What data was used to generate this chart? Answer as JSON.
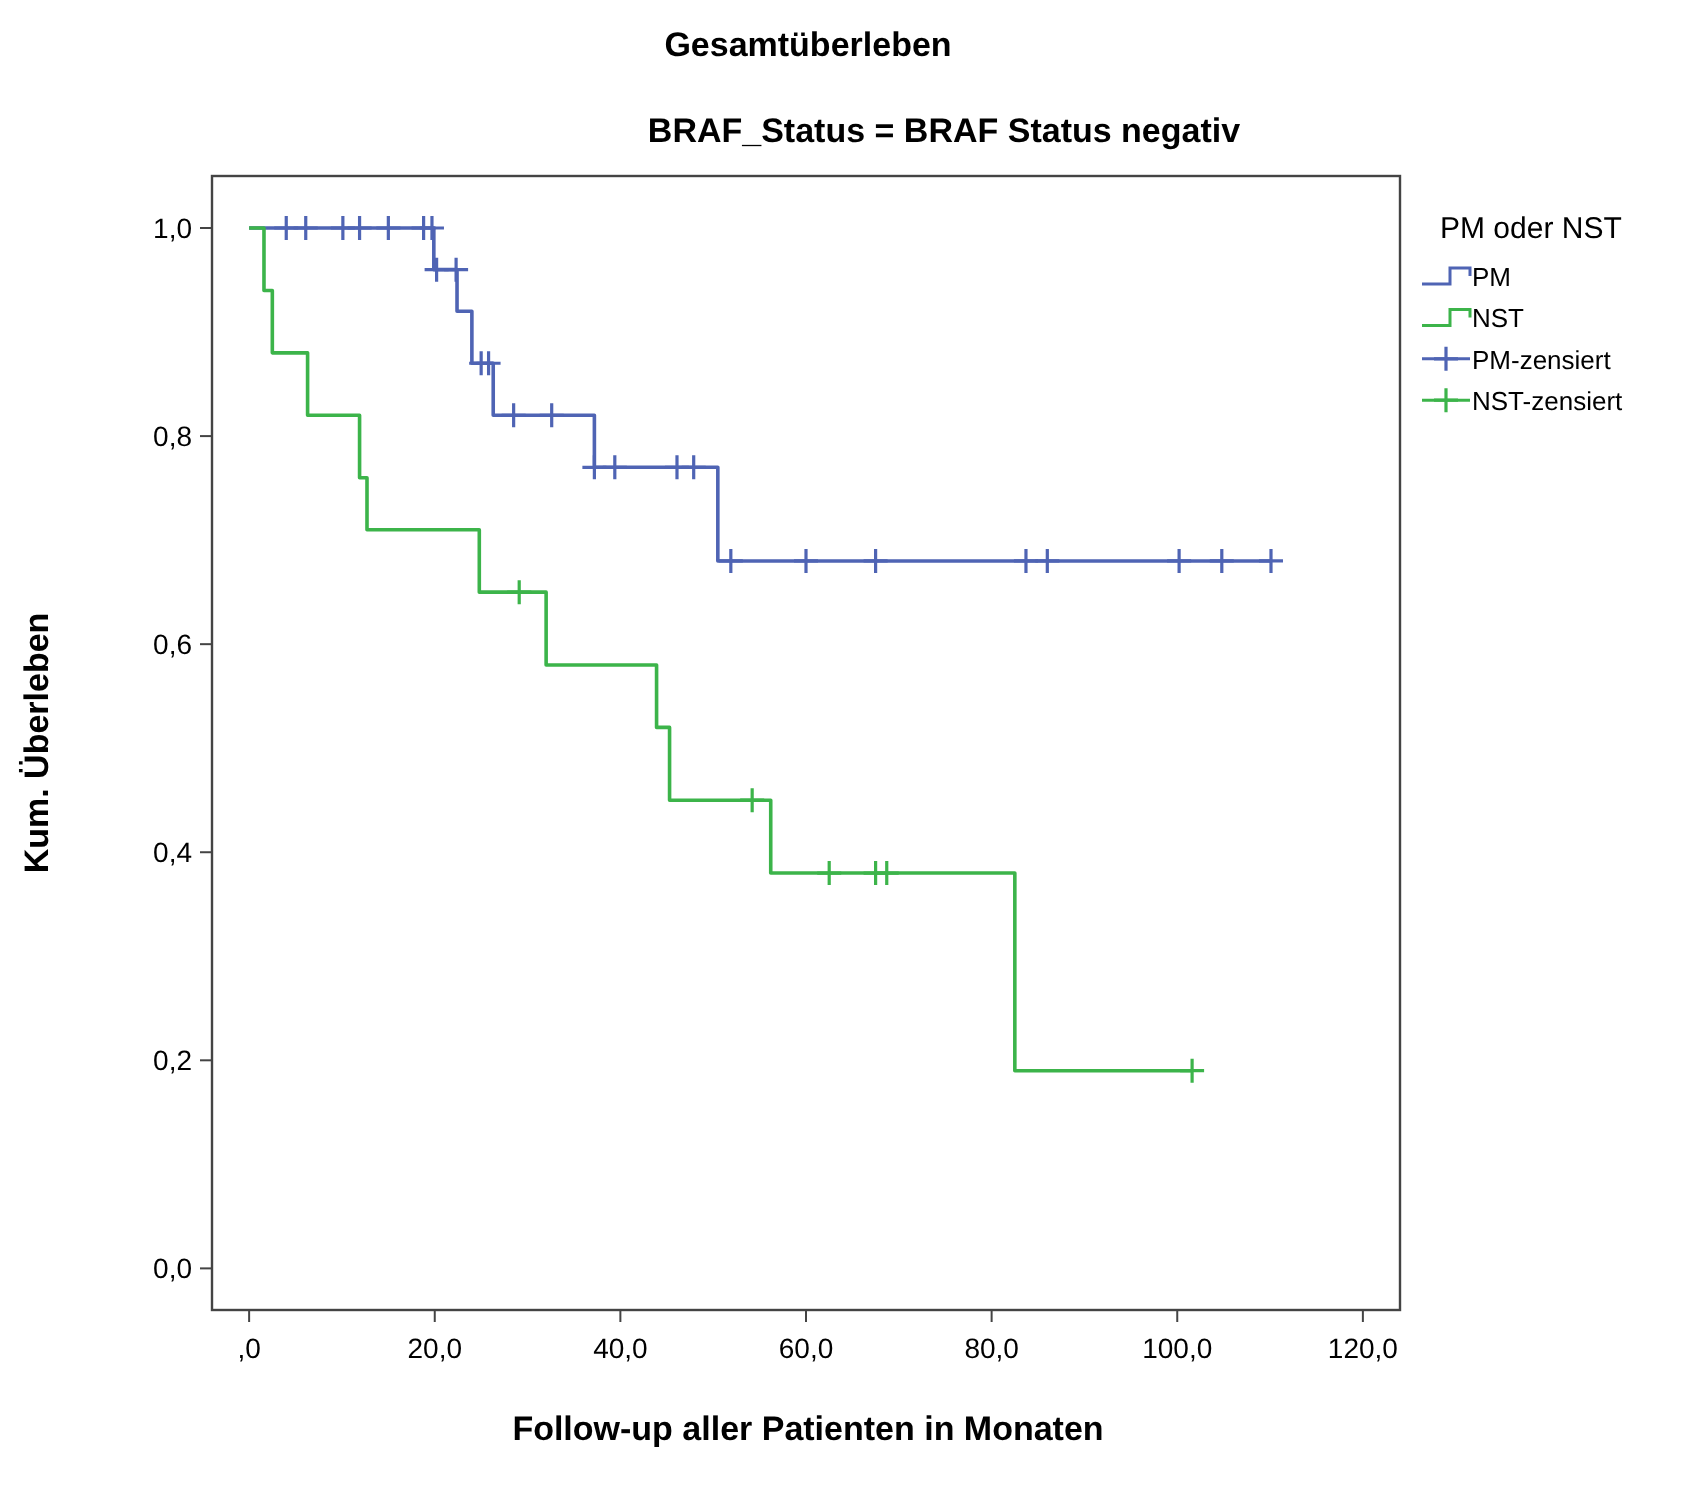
{
  "chart_data": {
    "type": "step",
    "title": "Gesamtüberleben",
    "subtitle": "BRAF_Status = BRAF Status negativ",
    "xlabel": "Follow-up aller Patienten in Monaten",
    "ylabel": "Kum. Überleben",
    "legend_title": "PM oder NST",
    "legend": "right",
    "grid": false,
    "xlim": [
      -4,
      124
    ],
    "xticks": [
      {
        "value": 0,
        "label": ",0"
      },
      {
        "value": 20,
        "label": "20,0"
      },
      {
        "value": 40,
        "label": "40,0"
      },
      {
        "value": 60,
        "label": "60,0"
      },
      {
        "value": 80,
        "label": "80,0"
      },
      {
        "value": 100,
        "label": "100,0"
      },
      {
        "value": 120,
        "label": "120,0"
      }
    ],
    "ylim": [
      -0.04,
      1.05
    ],
    "yticks": [
      {
        "value": 0,
        "label": "0,0"
      },
      {
        "value": 0.2,
        "label": "0,2"
      },
      {
        "value": 0.4,
        "label": "0,4"
      },
      {
        "value": 0.6,
        "label": "0,6"
      },
      {
        "value": 0.8,
        "label": "0,8"
      },
      {
        "value": 1,
        "label": "1,0"
      }
    ],
    "series": [
      {
        "name": "PM",
        "type": "step",
        "color": "#4f64b4",
        "x": [
          0,
          19.9,
          22.4,
          24.0,
          26.3,
          37.2,
          50.5,
          110.1
        ],
        "values": [
          1,
          0.96,
          0.92,
          0.87,
          0.82,
          0.77,
          0.68,
          0.68
        ]
      },
      {
        "name": "NST",
        "type": "step",
        "color": "#3cb44a",
        "x": [
          0,
          1.6,
          2.5,
          6.3,
          11.9,
          12.7,
          24.8,
          32.0,
          43.9,
          45.3,
          56.2,
          82.5,
          101.6
        ],
        "values": [
          1,
          0.94,
          0.88,
          0.82,
          0.76,
          0.71,
          0.65,
          0.58,
          0.52,
          0.45,
          0.38,
          0.19,
          0.19
        ]
      },
      {
        "name": "PM-zensiert",
        "type": "scatter",
        "marker": "cross",
        "color": "#4f64b4",
        "x": [
          4.0,
          6.1,
          10.1,
          11.9,
          15.0,
          18.8,
          19.7,
          20.2,
          22.3,
          25.0,
          25.8,
          28.5,
          32.6,
          37.2,
          39.4,
          46.1,
          47.9,
          51.9,
          60.0,
          67.5,
          83.7,
          86.0,
          100.2,
          104.8,
          110.1
        ],
        "values": [
          1,
          1,
          1,
          1,
          1,
          1,
          1,
          0.96,
          0.96,
          0.87,
          0.87,
          0.82,
          0.82,
          0.77,
          0.77,
          0.77,
          0.77,
          0.68,
          0.68,
          0.68,
          0.68,
          0.68,
          0.68,
          0.68,
          0.68
        ]
      },
      {
        "name": "NST-zensiert",
        "type": "scatter",
        "marker": "cross",
        "color": "#3cb44a",
        "x": [
          29.1,
          54.2,
          62.5,
          67.5,
          68.7,
          101.6
        ],
        "values": [
          0.65,
          0.45,
          0.38,
          0.38,
          0.38,
          0.19
        ]
      }
    ]
  }
}
